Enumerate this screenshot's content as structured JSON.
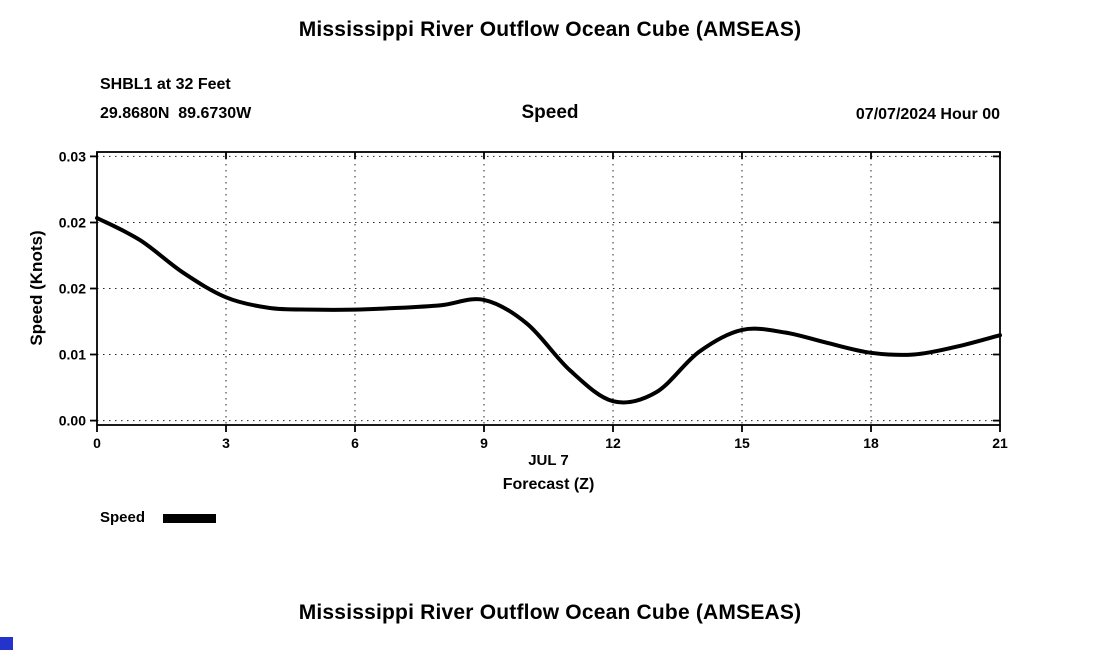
{
  "page": {
    "top_title": "Mississippi River Outflow Ocean Cube (AMSEAS)",
    "bottom_title": "Mississippi River Outflow Ocean Cube (AMSEAS)"
  },
  "decorations": {
    "corner_square_color": "#2333cc"
  },
  "chart_data": {
    "type": "line",
    "suptitle": "Mississippi River Outflow Ocean Cube (AMSEAS)",
    "title": "Speed",
    "station": "SHBL1 at 32 Feet",
    "coordinates": "29.8680N  89.6730W",
    "forecast_datetime": "07/07/2024 Hour 00",
    "xlabel_date": "JUL 7",
    "xlabel": "Forecast (Z)",
    "ylabel": "Speed (Knots)",
    "xlim": [
      0,
      21
    ],
    "ylim": [
      0,
      0.03
    ],
    "xticks": [
      0,
      3,
      6,
      9,
      12,
      15,
      18,
      21
    ],
    "ytick_values": [
      0,
      0.0075,
      0.015,
      0.0225,
      0.03
    ],
    "ytick_labels": [
      "0.00",
      "0.01",
      "0.02",
      "0.02",
      "0.03"
    ],
    "grid": "dotted",
    "legend": {
      "label": "Speed",
      "color": "#000000",
      "position": "below-left"
    },
    "line_color": "#000000",
    "line_width": 4,
    "series": [
      {
        "name": "Speed",
        "x": [
          0,
          1,
          2,
          3,
          4,
          5,
          6,
          7,
          8,
          9,
          10,
          11,
          12,
          13,
          14,
          15,
          16,
          17,
          18,
          19,
          20,
          21
        ],
        "y": [
          0.023,
          0.0205,
          0.0168,
          0.014,
          0.0128,
          0.0126,
          0.0126,
          0.0128,
          0.0131,
          0.0137,
          0.011,
          0.0057,
          0.0022,
          0.0032,
          0.0078,
          0.0103,
          0.01,
          0.0088,
          0.0077,
          0.0075,
          0.0084,
          0.0097
        ]
      }
    ]
  }
}
